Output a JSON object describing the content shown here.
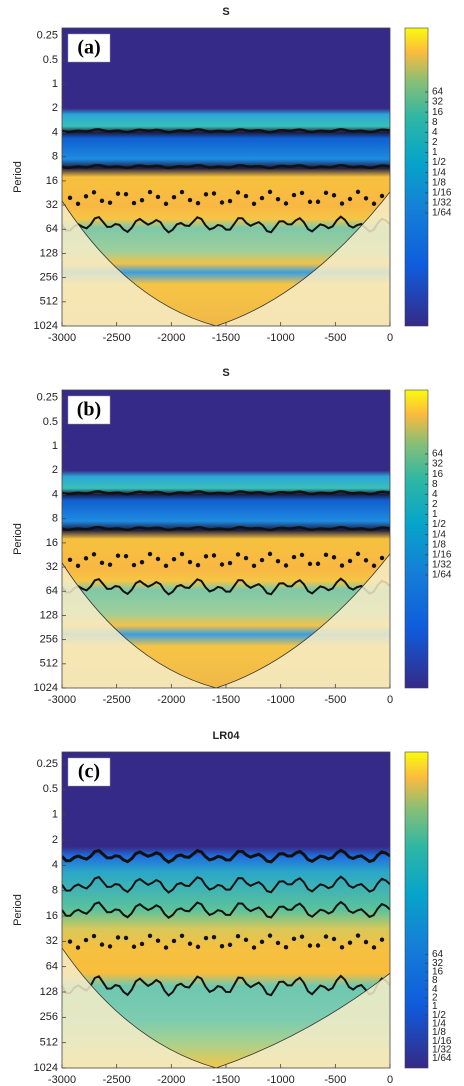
{
  "chart_data": [
    {
      "type": "heatmap",
      "title": "S",
      "panel_label": "(a)",
      "ylabel": "Period",
      "xlim": [
        -3000,
        0
      ],
      "xticks": [
        -3000,
        -2500,
        -2000,
        -1500,
        -1000,
        -500,
        0
      ],
      "ylim": [
        0.2,
        1024
      ],
      "yticks": [
        0.25,
        0.5,
        1,
        2,
        4,
        8,
        16,
        32,
        64,
        128,
        256,
        512,
        1024
      ],
      "log_scale": true,
      "y_reversed": true,
      "colorbar": {
        "lim": [
          6.6e-06,
          5200
        ],
        "log_scale": true,
        "ticks": [
          64,
          32,
          16,
          8,
          4,
          2,
          1,
          {
            "value": 0.5,
            "label": "1/2"
          },
          {
            "value": 0.25,
            "label": "1/4"
          },
          {
            "value": 0.125,
            "label": "1/8"
          },
          {
            "value": 0.0625,
            "label": "1/16"
          },
          {
            "value": 0.03125,
            "label": "1/32"
          },
          {
            "value": 0.015625,
            "label": "1/64"
          }
        ]
      }
    },
    {
      "type": "heatmap",
      "title": "S",
      "panel_label": "(b)",
      "ylabel": "Period",
      "xlim": [
        -3000,
        0
      ],
      "xticks": [
        -3000,
        -2500,
        -2000,
        -1500,
        -1000,
        -500,
        0
      ],
      "ylim": [
        0.2,
        1024
      ],
      "yticks": [
        0.25,
        0.5,
        1,
        2,
        4,
        8,
        16,
        32,
        64,
        128,
        256,
        512,
        1024
      ],
      "log_scale": true,
      "y_reversed": true,
      "colorbar": {
        "lim": [
          6.6e-06,
          5200
        ],
        "log_scale": true,
        "ticks": [
          64,
          32,
          16,
          8,
          4,
          2,
          1,
          {
            "value": 0.5,
            "label": "1/2"
          },
          {
            "value": 0.25,
            "label": "1/4"
          },
          {
            "value": 0.125,
            "label": "1/8"
          },
          {
            "value": 0.0625,
            "label": "1/16"
          },
          {
            "value": 0.03125,
            "label": "1/32"
          },
          {
            "value": 0.015625,
            "label": "1/64"
          }
        ]
      }
    },
    {
      "type": "heatmap",
      "title": "LR04",
      "panel_label": "(c)",
      "ylabel": "Period",
      "xlim": [
        -3000,
        0
      ],
      "xticks": [
        -3000,
        -2500,
        -2000,
        -1500,
        -1000,
        -500,
        0
      ],
      "ylim": [
        0.18,
        1024
      ],
      "yticks": [
        0.25,
        0.5,
        1,
        2,
        4,
        8,
        16,
        32,
        64,
        128,
        256,
        512,
        1024
      ],
      "log_scale": true,
      "y_reversed": true,
      "colorbar": {
        "lim": [
          0.0073,
          700000000
        ],
        "log_scale": true,
        "ticks": [
          64,
          32,
          16,
          8,
          4,
          2,
          1,
          {
            "value": 0.5,
            "label": "1/2"
          },
          {
            "value": 0.25,
            "label": "1/4"
          },
          {
            "value": 0.125,
            "label": "1/8"
          },
          {
            "value": 0.0625,
            "label": "1/16"
          },
          {
            "value": 0.03125,
            "label": "1/32"
          },
          {
            "value": 0.015625,
            "label": "1/64"
          }
        ]
      }
    }
  ]
}
